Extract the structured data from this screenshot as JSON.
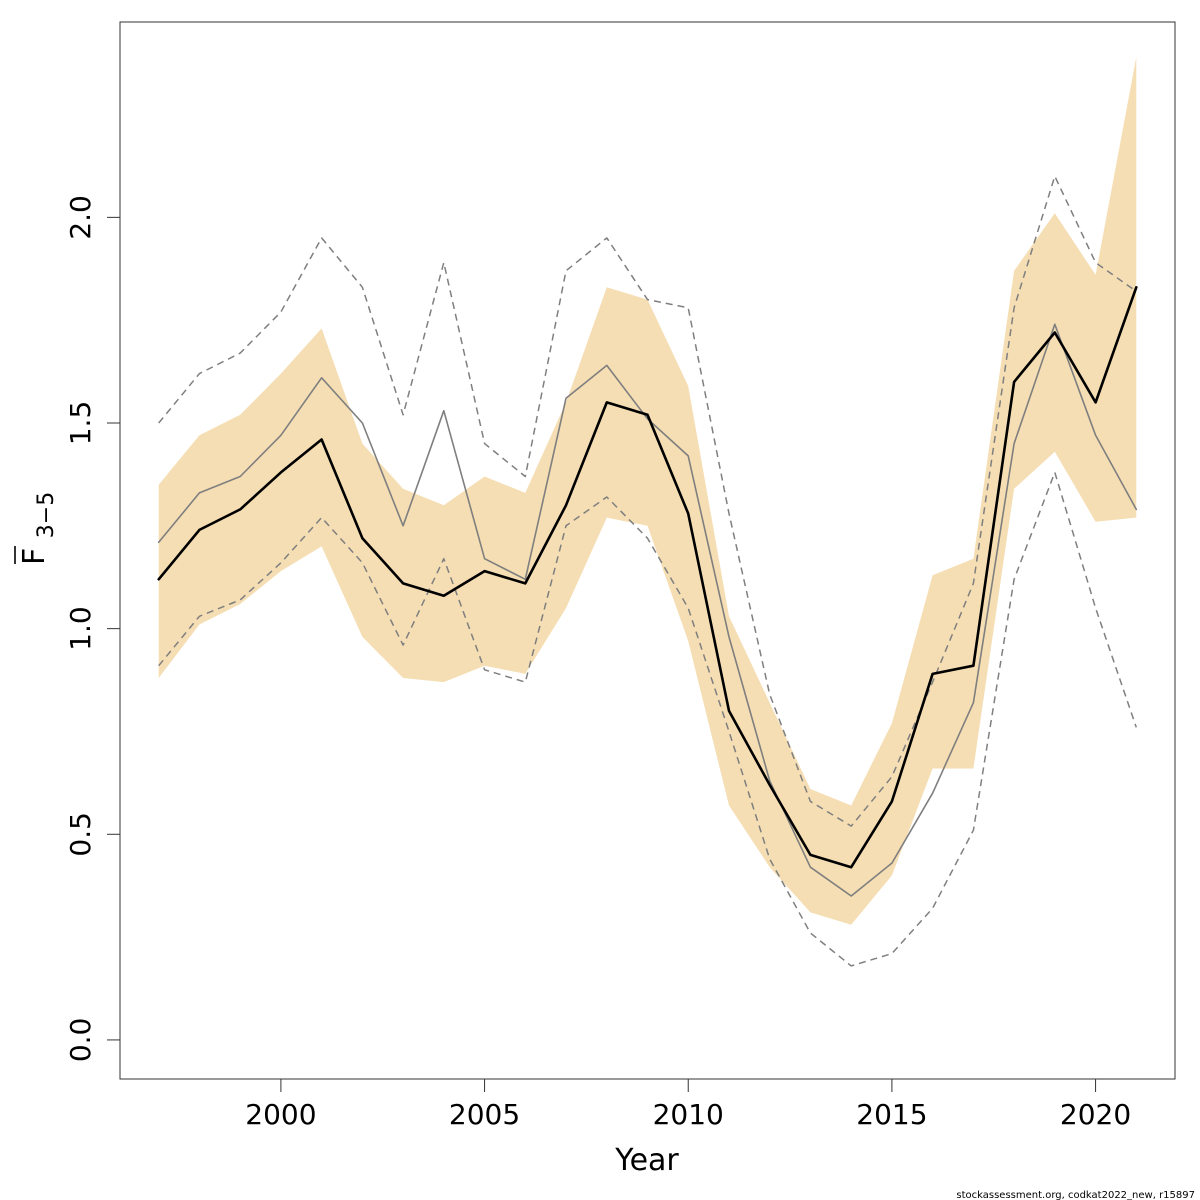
{
  "chart_data": {
    "type": "line",
    "xlabel": "Year",
    "ylabel_main": "F",
    "ylabel_sub": "3−5",
    "xlim": [
      1996.05,
      2021.95
    ],
    "ylim": [
      -0.095,
      2.475
    ],
    "x_ticks": [
      2000,
      2005,
      2010,
      2015,
      2020
    ],
    "x_tick_labels": [
      "2000",
      "2005",
      "2010",
      "2015",
      "2020"
    ],
    "y_ticks": [
      0.0,
      0.5,
      1.0,
      1.5,
      2.0
    ],
    "y_tick_labels": [
      "0.0",
      "0.5",
      "1.0",
      "1.5",
      "2.0"
    ],
    "grid": false,
    "legend": "none",
    "x": [
      1997,
      1998,
      1999,
      2000,
      2001,
      2002,
      2003,
      2004,
      2005,
      2006,
      2007,
      2008,
      2009,
      2010,
      2011,
      2012,
      2013,
      2014,
      2015,
      2016,
      2017,
      2018,
      2019,
      2020,
      2021
    ],
    "series": [
      {
        "role": "confidence band",
        "color": "#f5deb3",
        "lower": [
          0.88,
          1.01,
          1.06,
          1.14,
          1.2,
          0.98,
          0.88,
          0.87,
          0.91,
          0.89,
          1.05,
          1.27,
          1.25,
          0.97,
          0.57,
          0.42,
          0.31,
          0.28,
          0.4,
          0.66,
          0.66,
          1.34,
          1.43,
          1.26,
          1.27
        ],
        "upper": [
          1.35,
          1.47,
          1.52,
          1.62,
          1.73,
          1.45,
          1.34,
          1.3,
          1.37,
          1.33,
          1.55,
          1.83,
          1.8,
          1.59,
          1.03,
          0.82,
          0.61,
          0.57,
          0.77,
          1.13,
          1.17,
          1.87,
          2.01,
          1.86,
          2.39
        ]
      },
      {
        "role": "estimate",
        "color": "#000000",
        "style": "solid-bold",
        "values": [
          1.12,
          1.24,
          1.29,
          1.38,
          1.46,
          1.22,
          1.11,
          1.08,
          1.14,
          1.11,
          1.3,
          1.55,
          1.52,
          1.28,
          0.8,
          0.62,
          0.45,
          0.42,
          0.58,
          0.89,
          0.91,
          1.6,
          1.72,
          1.55,
          1.83
        ]
      },
      {
        "role": "comparison estimate",
        "color": "#7f7f7f",
        "style": "solid-thin",
        "values": [
          1.21,
          1.33,
          1.37,
          1.47,
          1.61,
          1.5,
          1.25,
          1.53,
          1.17,
          1.12,
          1.56,
          1.64,
          1.51,
          1.42,
          0.98,
          0.63,
          0.42,
          0.35,
          0.43,
          0.6,
          0.82,
          1.45,
          1.74,
          1.47,
          1.29
        ]
      },
      {
        "role": "comparison upper bound",
        "color": "#7f7f7f",
        "style": "dashed",
        "values": [
          1.5,
          1.62,
          1.67,
          1.77,
          1.95,
          1.83,
          1.52,
          1.89,
          1.45,
          1.37,
          1.87,
          1.95,
          1.8,
          1.78,
          1.28,
          0.84,
          0.58,
          0.52,
          0.64,
          0.87,
          1.11,
          1.78,
          2.1,
          1.89,
          1.82
        ]
      },
      {
        "role": "comparison lower bound",
        "color": "#7f7f7f",
        "style": "dashed",
        "values": [
          0.91,
          1.03,
          1.07,
          1.16,
          1.27,
          1.16,
          0.96,
          1.17,
          0.9,
          0.87,
          1.25,
          1.32,
          1.22,
          1.05,
          0.75,
          0.44,
          0.26,
          0.18,
          0.21,
          0.32,
          0.51,
          1.12,
          1.38,
          1.05,
          0.76
        ]
      }
    ],
    "footer": "stockassessment.org, codkat2022_new, r15897"
  }
}
